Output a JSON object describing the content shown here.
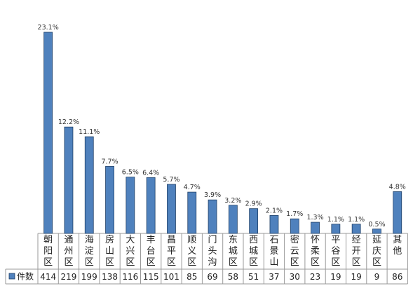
{
  "chart_data": {
    "type": "bar",
    "categories": [
      [
        "朝",
        "阳",
        "区"
      ],
      [
        "通",
        "州",
        "区"
      ],
      [
        "海",
        "淀",
        "区"
      ],
      [
        "房",
        "山",
        "区"
      ],
      [
        "大",
        "兴",
        "区"
      ],
      [
        "丰",
        "台",
        "区"
      ],
      [
        "昌",
        "平",
        "区"
      ],
      [
        "顺",
        "义",
        "区"
      ],
      [
        "门",
        "头",
        "沟"
      ],
      [
        "东",
        "城",
        "区"
      ],
      [
        "西",
        "城",
        "区"
      ],
      [
        "石",
        "景",
        "山"
      ],
      [
        "密",
        "云",
        "区"
      ],
      [
        "怀",
        "柔",
        "区"
      ],
      [
        "平",
        "谷",
        "区"
      ],
      [
        "经",
        "开",
        "区"
      ],
      [
        "延",
        "庆",
        "区"
      ],
      [
        "其",
        "他"
      ]
    ],
    "series": [
      {
        "name": "件数",
        "values": [
          414,
          219,
          199,
          138,
          116,
          115,
          101,
          85,
          69,
          58,
          51,
          37,
          30,
          23,
          19,
          19,
          9,
          86
        ]
      }
    ],
    "percent_labels": [
      "23.1%",
      "12.2%",
      "11.1%",
      "7.7%",
      "6.5%",
      "6.4%",
      "5.7%",
      "4.7%",
      "3.9%",
      "3.2%",
      "2.9%",
      "2.1%",
      "1.7%",
      "1.3%",
      "1.1%",
      "1.1%",
      "0.5%",
      "4.8%"
    ],
    "bar_color": "#4f81bd",
    "bar_edge_color": "#1f3f66",
    "legend_placement": "left of data table",
    "grid": false
  }
}
